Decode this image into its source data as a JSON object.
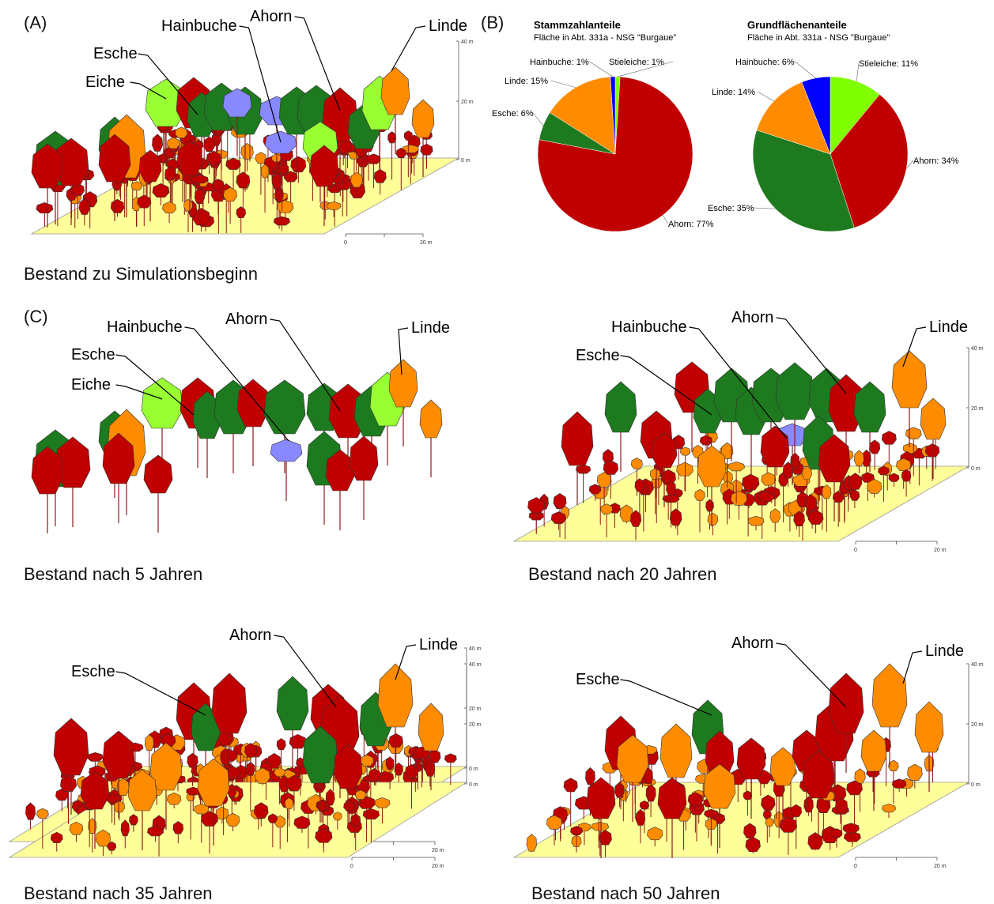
{
  "panel_letters": {
    "a": "(A)",
    "b": "(B)",
    "c": "(C)"
  },
  "colors": {
    "Ahorn": "#c00000",
    "Esche": "#1e7a1e",
    "Linde": "#ff8c00",
    "Eiche": "#99ff33",
    "Hainbuche": "#8888ff",
    "Stieleiche": "#80ff00",
    "HainbucheBlue": "#0000ff",
    "ground": "#ffff99"
  },
  "scale": {
    "height_ticks": [
      "40 m",
      "20 m",
      "0 m"
    ],
    "distance_ticks": [
      "0",
      "20 m"
    ]
  },
  "stands": [
    {
      "caption": "Bestand zu Simulationsbeginn",
      "labels": [
        "Eiche",
        "Esche",
        "Hainbuche",
        "Ahorn",
        "Linde"
      ]
    },
    {
      "caption": "Bestand nach 5 Jahren",
      "labels": [
        "Eiche",
        "Esche",
        "Hainbuche",
        "Ahorn",
        "Linde"
      ]
    },
    {
      "caption": "Bestand nach 20 Jahren",
      "labels": [
        "Esche",
        "Hainbuche",
        "Ahorn",
        "Linde"
      ]
    },
    {
      "caption": "Bestand nach 35 Jahren",
      "labels": [
        "Esche",
        "Ahorn",
        "Linde"
      ]
    },
    {
      "caption": "Bestand nach 50 Jahren",
      "labels": [
        "Esche",
        "Ahorn",
        "Linde"
      ]
    }
  ],
  "chart_data": [
    {
      "type": "pie",
      "title": "Stammzahlanteile",
      "subtitle": "Fläche in Abt. 331a  - NSG \"Burgaue\"",
      "slices": [
        {
          "name": "Stieleiche",
          "value": 1,
          "label": "Stieleiche: 1%",
          "color": "#80ff00"
        },
        {
          "name": "Ahorn",
          "value": 77,
          "label": "Ahorn: 77%",
          "color": "#c00000"
        },
        {
          "name": "Esche",
          "value": 6,
          "label": "Esche: 6%",
          "color": "#1e7a1e"
        },
        {
          "name": "Linde",
          "value": 15,
          "label": "Linde: 15%",
          "color": "#ff8c00"
        },
        {
          "name": "Hainbuche",
          "value": 1,
          "label": "Hainbuche: 1%",
          "color": "#0000ff"
        }
      ]
    },
    {
      "type": "pie",
      "title": "Grundflächenanteile",
      "subtitle": "Fläche in Abt. 331a  - NSG \"Burgaue\"",
      "slices": [
        {
          "name": "Stieleiche",
          "value": 11,
          "label": "Stieleiche: 11%",
          "color": "#80ff00"
        },
        {
          "name": "Ahorn",
          "value": 34,
          "label": "Ahorn: 34%",
          "color": "#c00000"
        },
        {
          "name": "Esche",
          "value": 35,
          "label": "Esche: 35%",
          "color": "#1e7a1e"
        },
        {
          "name": "Linde",
          "value": 14,
          "label": "Linde: 14%",
          "color": "#ff8c00"
        },
        {
          "name": "Hainbuche",
          "value": 6,
          "label": "Hainbuche: 6%",
          "color": "#0000ff"
        }
      ]
    }
  ]
}
